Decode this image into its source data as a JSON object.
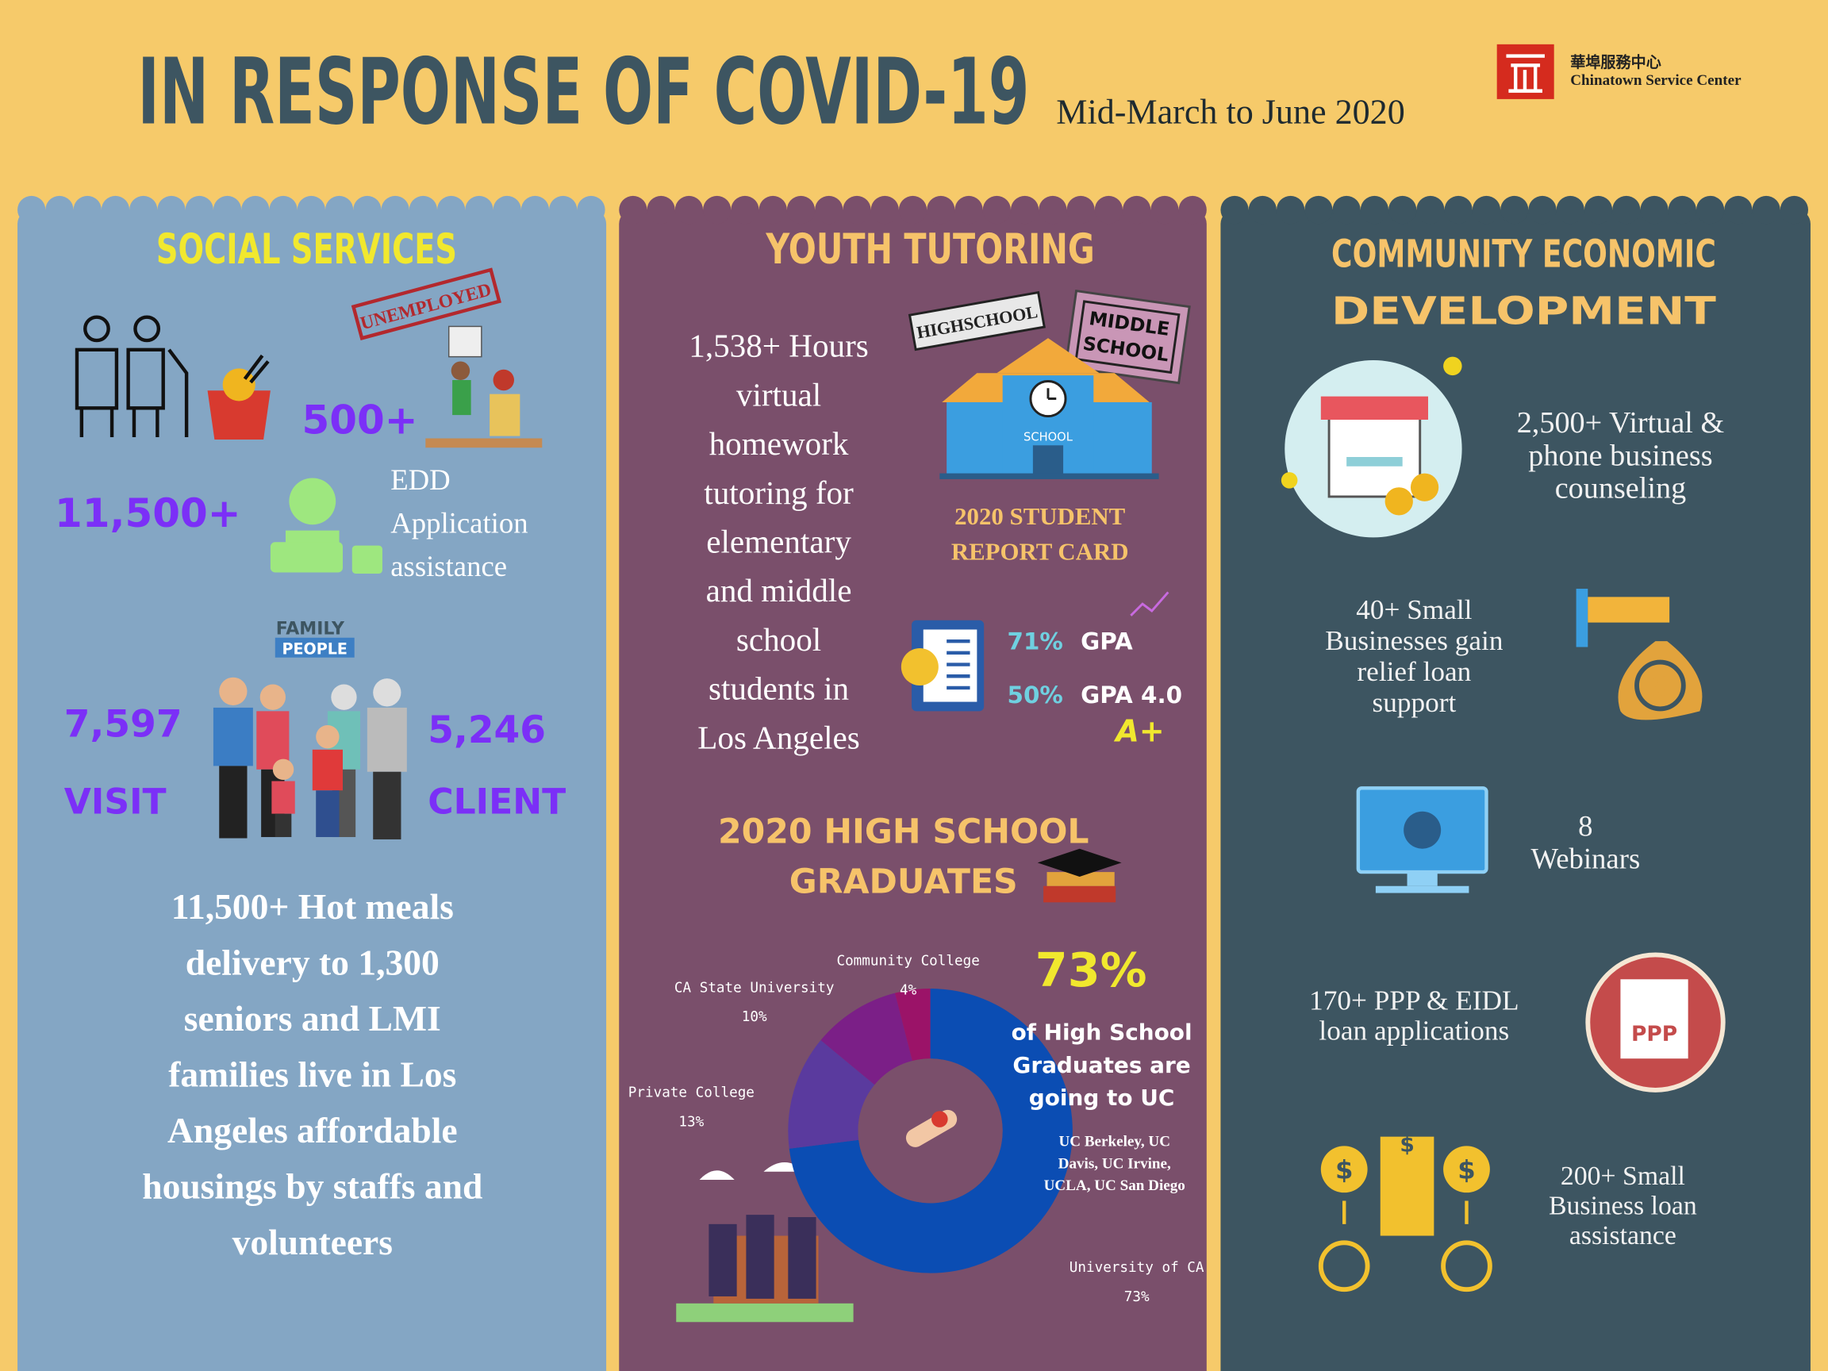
{
  "header": {
    "title": "IN RESPONSE OF COVID-19",
    "subtitle": "Mid-March to June 2020",
    "logo_chinese": "華埠服務中心",
    "logo_english": "Chinatown Service Center"
  },
  "social_services": {
    "title": "SOCIAL SERVICES",
    "stamp": "UNEMPLOYED",
    "unemployed_count": "500+",
    "edd_count": "11,500+",
    "edd_label": [
      "EDD",
      "Application",
      "assistance"
    ],
    "family_badge": [
      "FAMILY",
      "PEOPLE"
    ],
    "visits": "7,597",
    "visits_label": "VISIT",
    "clients": "5,246",
    "clients_label": "CLIENT",
    "meals": [
      "11,500+ Hot meals",
      "delivery to 1,300",
      "seniors and LMI",
      "families live in Los",
      "Angeles affordable",
      "housings by staffs and",
      "volunteers"
    ]
  },
  "youth_tutoring": {
    "title": "YOUTH  TUTORING",
    "hours": [
      "1,538+ Hours",
      "virtual",
      "homework",
      "tutoring for",
      "elementary",
      "and middle",
      "school",
      "students in",
      "Los Angeles"
    ],
    "stamp_high": "HIGHSCHOOL",
    "stamp_middle": [
      "MIDDLE",
      "SCHOOL"
    ],
    "school_sign": "SCHOOL",
    "report_card": [
      "2020 STUDENT",
      "REPORT CARD"
    ],
    "gpa": [
      {
        "share": "71%",
        "label": "GPA"
      },
      {
        "share": "50%",
        "label": "GPA 4.0"
      }
    ],
    "grade": "A+",
    "graduates_title": [
      "2020 HIGH SCHOOL",
      "GRADUATES"
    ],
    "uc_share": "73%",
    "uc_text": [
      "of High School",
      "Graduates are",
      "going to UC"
    ],
    "uc_campuses": [
      "UC Berkeley, UC",
      "Davis, UC Irvine,",
      "UCLA, UC San Diego"
    ]
  },
  "chart_data": {
    "type": "donut",
    "categories": [
      "University of CA",
      "Private College",
      "CA State University",
      "Community College"
    ],
    "values": [
      73,
      13,
      10,
      4
    ],
    "value_labels": [
      "73%",
      "13%",
      "10%",
      "4%"
    ],
    "colors": [
      "#0b4db3",
      "#5a3a9e",
      "#7b1f87",
      "#9b1368"
    ]
  },
  "community_economic_development": {
    "title": [
      "COMMUNITY ECONOMIC",
      "DEVELOPMENT"
    ],
    "items": [
      {
        "text": [
          "2,500+ Virtual &",
          "phone business",
          "counseling"
        ]
      },
      {
        "text": [
          "40+ Small",
          "Businesses gain",
          "relief loan",
          "support"
        ]
      },
      {
        "text": [
          "8",
          "Webinars"
        ]
      },
      {
        "text": [
          "170+ PPP & EIDL",
          "loan applications"
        ]
      },
      {
        "text": [
          "200+ Small",
          "Business  loan",
          "assistance"
        ]
      }
    ],
    "ppp_icon": "PPP",
    "currency_symbol": "$"
  }
}
